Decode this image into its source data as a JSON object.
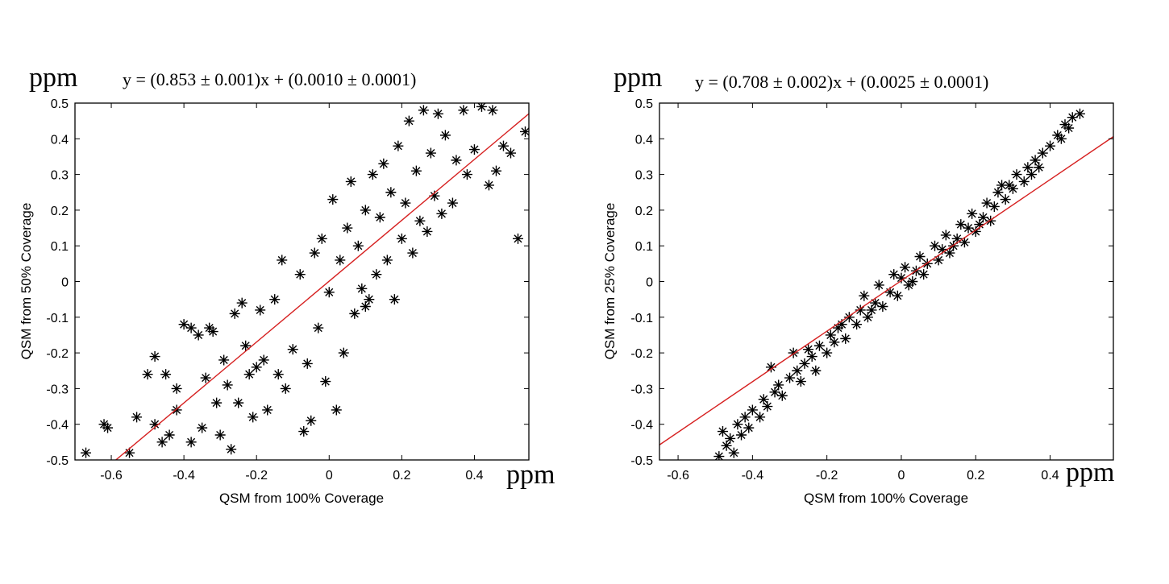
{
  "chart_data": [
    {
      "type": "scatter",
      "xlabel": "QSM from 100% Coverage",
      "ylabel": "QSM from 50% Coverage",
      "y_unit": "ppm",
      "x_unit": "ppm",
      "equation": "y = (0.853 ± 0.001)x + (0.0010 ± 0.0001)",
      "xlim": [
        -0.7,
        0.55
      ],
      "ylim": [
        -0.5,
        0.5
      ],
      "xticks": [
        -0.6,
        -0.4,
        -0.2,
        0,
        0.2,
        0.4
      ],
      "xtick_labels": [
        "-0.6",
        "-0.4",
        "-0.2",
        "0",
        "0.2",
        "0.4"
      ],
      "yticks": [
        -0.5,
        -0.4,
        -0.3,
        -0.2,
        -0.1,
        0,
        0.1,
        0.2,
        0.3,
        0.4,
        0.5
      ],
      "ytick_labels": [
        "-0.5",
        "-0.4",
        "-0.3",
        "-0.2",
        "-0.1",
        "0",
        "0.1",
        "0.2",
        "0.3",
        "0.4",
        "0.5"
      ],
      "fit": {
        "slope": 0.853,
        "intercept": 0.001,
        "color": "#d62020"
      },
      "marker_color": "#000000",
      "points": [
        [
          -0.67,
          -0.48
        ],
        [
          -0.62,
          -0.4
        ],
        [
          -0.61,
          -0.41
        ],
        [
          -0.55,
          -0.48
        ],
        [
          -0.53,
          -0.38
        ],
        [
          -0.5,
          -0.26
        ],
        [
          -0.48,
          -0.21
        ],
        [
          -0.45,
          -0.26
        ],
        [
          -0.48,
          -0.4
        ],
        [
          -0.46,
          -0.45
        ],
        [
          -0.44,
          -0.43
        ],
        [
          -0.42,
          -0.3
        ],
        [
          -0.4,
          -0.12
        ],
        [
          -0.38,
          -0.13
        ],
        [
          -0.38,
          -0.45
        ],
        [
          -0.36,
          -0.15
        ],
        [
          -0.35,
          -0.41
        ],
        [
          -0.34,
          -0.27
        ],
        [
          -0.32,
          -0.14
        ],
        [
          -0.31,
          -0.34
        ],
        [
          -0.3,
          -0.43
        ],
        [
          -0.29,
          -0.22
        ],
        [
          -0.27,
          -0.47
        ],
        [
          -0.26,
          -0.09
        ],
        [
          -0.25,
          -0.34
        ],
        [
          -0.24,
          -0.06
        ],
        [
          -0.23,
          -0.18
        ],
        [
          -0.22,
          -0.26
        ],
        [
          -0.21,
          -0.38
        ],
        [
          -0.19,
          -0.08
        ],
        [
          -0.18,
          -0.22
        ],
        [
          -0.17,
          -0.36
        ],
        [
          -0.15,
          -0.05
        ],
        [
          -0.14,
          -0.26
        ],
        [
          -0.13,
          0.06
        ],
        [
          -0.12,
          -0.3
        ],
        [
          -0.1,
          -0.19
        ],
        [
          -0.08,
          0.02
        ],
        [
          -0.07,
          -0.42
        ],
        [
          -0.06,
          -0.23
        ],
        [
          -0.05,
          -0.39
        ],
        [
          -0.04,
          0.08
        ],
        [
          -0.03,
          -0.13
        ],
        [
          -0.02,
          0.12
        ],
        [
          -0.01,
          -0.28
        ],
        [
          0.0,
          -0.03
        ],
        [
          0.01,
          0.23
        ],
        [
          0.02,
          -0.36
        ],
        [
          0.03,
          0.06
        ],
        [
          0.04,
          -0.2
        ],
        [
          0.05,
          0.15
        ],
        [
          0.06,
          0.28
        ],
        [
          0.07,
          -0.09
        ],
        [
          0.08,
          0.1
        ],
        [
          0.09,
          -0.02
        ],
        [
          0.1,
          0.2
        ],
        [
          0.11,
          -0.05
        ],
        [
          0.12,
          0.3
        ],
        [
          0.13,
          0.02
        ],
        [
          0.14,
          0.18
        ],
        [
          0.15,
          0.33
        ],
        [
          0.16,
          0.06
        ],
        [
          0.17,
          0.25
        ],
        [
          0.18,
          -0.05
        ],
        [
          0.19,
          0.38
        ],
        [
          0.2,
          0.12
        ],
        [
          0.21,
          0.22
        ],
        [
          0.22,
          0.45
        ],
        [
          0.23,
          0.08
        ],
        [
          0.24,
          0.31
        ],
        [
          0.25,
          0.17
        ],
        [
          0.26,
          0.48
        ],
        [
          0.27,
          0.14
        ],
        [
          0.28,
          0.36
        ],
        [
          0.29,
          0.24
        ],
        [
          0.3,
          0.47
        ],
        [
          0.31,
          0.19
        ],
        [
          0.32,
          0.41
        ],
        [
          0.34,
          0.22
        ],
        [
          0.35,
          0.34
        ],
        [
          0.37,
          0.48
        ],
        [
          0.38,
          0.3
        ],
        [
          0.4,
          0.37
        ],
        [
          0.42,
          0.49
        ],
        [
          0.44,
          0.27
        ],
        [
          0.45,
          0.48
        ],
        [
          0.46,
          0.31
        ],
        [
          0.48,
          0.38
        ],
        [
          0.5,
          0.36
        ],
        [
          0.52,
          0.12
        ],
        [
          0.54,
          0.42
        ],
        [
          -0.42,
          -0.36
        ],
        [
          -0.28,
          -0.29
        ],
        [
          -0.33,
          -0.13
        ],
        [
          -0.2,
          -0.24
        ],
        [
          0.1,
          -0.07
        ]
      ]
    },
    {
      "type": "scatter",
      "xlabel": "QSM from 100% Coverage",
      "ylabel": "QSM from 25% Coverage",
      "y_unit": "ppm",
      "x_unit": "ppm",
      "equation": "y = (0.708 ± 0.002)x + (0.0025 ± 0.0001)",
      "xlim": [
        -0.65,
        0.57
      ],
      "ylim": [
        -0.5,
        0.5
      ],
      "xticks": [
        -0.6,
        -0.4,
        -0.2,
        0,
        0.2,
        0.4
      ],
      "xtick_labels": [
        "-0.6",
        "-0.4",
        "-0.2",
        "0",
        "0.2",
        "0.4"
      ],
      "yticks": [
        -0.5,
        -0.4,
        -0.3,
        -0.2,
        -0.1,
        0,
        0.1,
        0.2,
        0.3,
        0.4,
        0.5
      ],
      "ytick_labels": [
        "-0.5",
        "-0.4",
        "-0.3",
        "-0.2",
        "-0.1",
        "0",
        "0.1",
        "0.2",
        "0.3",
        "0.4",
        "0.5"
      ],
      "fit": {
        "slope": 0.708,
        "intercept": 0.0025,
        "color": "#d62020"
      },
      "marker_color": "#000000",
      "points": [
        [
          -0.49,
          -0.49
        ],
        [
          -0.48,
          -0.42
        ],
        [
          -0.47,
          -0.46
        ],
        [
          -0.46,
          -0.44
        ],
        [
          -0.45,
          -0.48
        ],
        [
          -0.44,
          -0.4
        ],
        [
          -0.43,
          -0.43
        ],
        [
          -0.42,
          -0.38
        ],
        [
          -0.41,
          -0.41
        ],
        [
          -0.4,
          -0.36
        ],
        [
          -0.38,
          -0.38
        ],
        [
          -0.37,
          -0.33
        ],
        [
          -0.36,
          -0.35
        ],
        [
          -0.35,
          -0.24
        ],
        [
          -0.34,
          -0.31
        ],
        [
          -0.33,
          -0.29
        ],
        [
          -0.32,
          -0.32
        ],
        [
          -0.3,
          -0.27
        ],
        [
          -0.29,
          -0.2
        ],
        [
          -0.28,
          -0.25
        ],
        [
          -0.27,
          -0.28
        ],
        [
          -0.26,
          -0.23
        ],
        [
          -0.24,
          -0.21
        ],
        [
          -0.23,
          -0.25
        ],
        [
          -0.22,
          -0.18
        ],
        [
          -0.2,
          -0.2
        ],
        [
          -0.19,
          -0.15
        ],
        [
          -0.18,
          -0.17
        ],
        [
          -0.16,
          -0.12
        ],
        [
          -0.15,
          -0.16
        ],
        [
          -0.14,
          -0.1
        ],
        [
          -0.12,
          -0.12
        ],
        [
          -0.11,
          -0.08
        ],
        [
          -0.1,
          -0.04
        ],
        [
          -0.09,
          -0.1
        ],
        [
          -0.07,
          -0.06
        ],
        [
          -0.06,
          -0.01
        ],
        [
          -0.05,
          -0.07
        ],
        [
          -0.03,
          -0.03
        ],
        [
          -0.02,
          0.02
        ],
        [
          -0.01,
          -0.04
        ],
        [
          0.0,
          0.01
        ],
        [
          0.01,
          0.04
        ],
        [
          0.02,
          -0.01
        ],
        [
          0.04,
          0.03
        ],
        [
          0.05,
          0.07
        ],
        [
          0.06,
          0.02
        ],
        [
          0.07,
          0.05
        ],
        [
          0.09,
          0.1
        ],
        [
          0.1,
          0.06
        ],
        [
          0.11,
          0.09
        ],
        [
          0.12,
          0.13
        ],
        [
          0.13,
          0.08
        ],
        [
          0.15,
          0.12
        ],
        [
          0.16,
          0.16
        ],
        [
          0.17,
          0.11
        ],
        [
          0.18,
          0.15
        ],
        [
          0.19,
          0.19
        ],
        [
          0.2,
          0.14
        ],
        [
          0.22,
          0.18
        ],
        [
          0.23,
          0.22
        ],
        [
          0.24,
          0.17
        ],
        [
          0.25,
          0.21
        ],
        [
          0.26,
          0.25
        ],
        [
          0.28,
          0.23
        ],
        [
          0.29,
          0.27
        ],
        [
          0.3,
          0.26
        ],
        [
          0.31,
          0.3
        ],
        [
          0.33,
          0.28
        ],
        [
          0.34,
          0.32
        ],
        [
          0.36,
          0.34
        ],
        [
          0.38,
          0.36
        ],
        [
          0.4,
          0.38
        ],
        [
          0.42,
          0.41
        ],
        [
          0.44,
          0.44
        ],
        [
          0.46,
          0.46
        ],
        [
          0.48,
          0.47
        ],
        [
          0.45,
          0.43
        ],
        [
          0.43,
          0.4
        ],
        [
          0.35,
          0.3
        ],
        [
          -0.08,
          -0.08
        ],
        [
          0.14,
          0.1
        ],
        [
          0.27,
          0.27
        ],
        [
          -0.17,
          -0.13
        ],
        [
          0.03,
          0.0
        ],
        [
          -0.25,
          -0.19
        ],
        [
          0.21,
          0.16
        ],
        [
          0.37,
          0.32
        ]
      ]
    }
  ]
}
